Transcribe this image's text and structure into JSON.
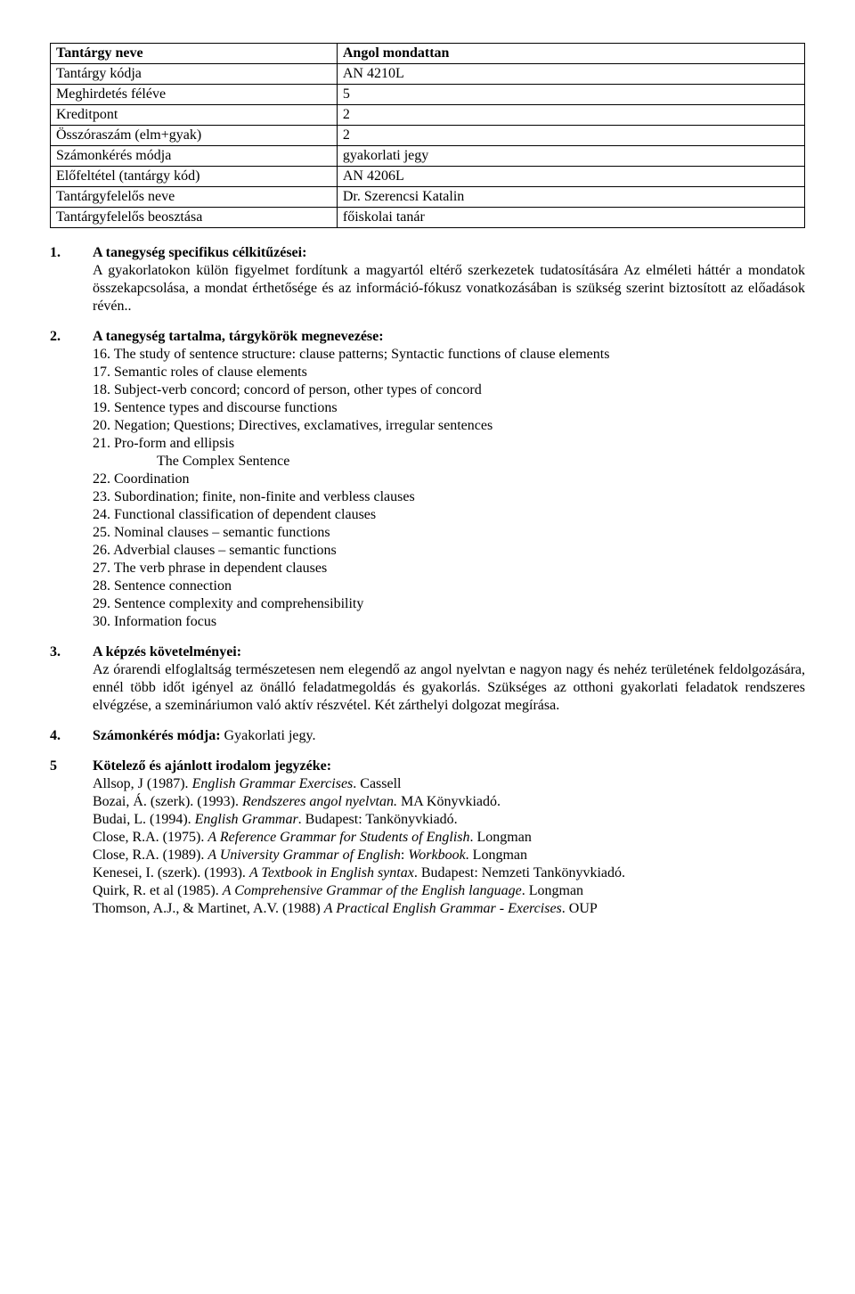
{
  "meta": {
    "rows": [
      {
        "label": "Tantárgy neve",
        "value": "Angol mondattan",
        "label_bold": true,
        "value_bold": true
      },
      {
        "label": "Tantárgy kódja",
        "value": "AN 4210L"
      },
      {
        "label": "Meghirdetés féléve",
        "value": "5"
      },
      {
        "label": "Kreditpont",
        "value": "2"
      },
      {
        "label": "Összóraszám (elm+gyak)",
        "value": "2"
      },
      {
        "label": "Számonkérés módja",
        "value": "gyakorlati jegy"
      },
      {
        "label": "Előfeltétel (tantárgy kód)",
        "value": "AN 4206L"
      },
      {
        "label": "Tantárgyfelelős neve",
        "value": "Dr. Szerencsi Katalin"
      },
      {
        "label": "Tantárgyfelelős beosztása",
        "value": "főiskolai tanár"
      }
    ]
  },
  "section1": {
    "num": "1.",
    "title": "A tanegység specifikus célkitűzései:",
    "body": "A gyakorlatokon külön figyelmet fordítunk a magyartól eltérő szerkezetek tudatosítására Az elméleti háttér a mondatok összekapcsolása, a mondat érthetősége és az információ-fókusz vonatkozásában is szükség szerint biztosított az előadások révén.."
  },
  "section2": {
    "num": "2.",
    "title": "A tanegység tartalma, tárgykörök megnevezése:",
    "items": [
      {
        "n": "16.",
        "text": "The study of sentence structure: clause patterns; Syntactic functions of clause elements"
      },
      {
        "n": "17.",
        "text": "Semantic roles of clause elements"
      },
      {
        "n": "18.",
        "text": "Subject-verb concord; concord of person, other types of concord"
      },
      {
        "n": "19.",
        "text": "Sentence types and discourse functions"
      },
      {
        "n": "20.",
        "text": "Negation; Questions; Directives, exclamatives, irregular sentences"
      },
      {
        "n": "21.",
        "text": "Pro-form and ellipsis"
      }
    ],
    "subheading": "The Complex Sentence",
    "items2": [
      {
        "n": "22.",
        "text": "Coordination"
      },
      {
        "n": "23.",
        "text": "Subordination; finite, non-finite and verbless clauses"
      },
      {
        "n": "24.",
        "text": "Functional classification of dependent clauses"
      },
      {
        "n": "25.",
        "text": "Nominal clauses – semantic functions"
      },
      {
        "n": "26.",
        "text": "Adverbial clauses – semantic functions"
      },
      {
        "n": "27.",
        "text": "The verb phrase in dependent clauses"
      },
      {
        "n": "28.",
        "text": "Sentence connection"
      },
      {
        "n": "29.",
        "text": "Sentence complexity and comprehensibility"
      },
      {
        "n": "30.",
        "text": "Information focus"
      }
    ]
  },
  "section3": {
    "num": "3.",
    "title": "A képzés követelményei:",
    "body": "Az órarendi elfoglaltság természetesen nem elegendő az angol nyelvtan e nagyon nagy és nehéz területének feldolgozására, ennél több időt igényel az önálló feladatmegoldás és gyakorlás. Szükséges az otthoni gyakorlati feladatok rendszeres elvégzése, a szemináriumon való aktív részvétel. Két zárthelyi dolgozat megírása."
  },
  "section4": {
    "num": "4.",
    "title": "Számonkérés módja:",
    "value": "Gyakorlati jegy."
  },
  "section5": {
    "num": "5",
    "title": "Kötelező és ajánlott irodalom jegyzéke:",
    "refs": [
      {
        "pre": "Allsop, J (1987). ",
        "ital": "English Grammar Exercises",
        "post": ". Cassell"
      },
      {
        "pre": "Bozai, Á. (szerk). (1993). ",
        "ital": "Rendszeres angol nyelvtan.",
        "post": " MA Könyvkiadó."
      },
      {
        "pre": "Budai, L. (1994). ",
        "ital": "English Grammar",
        "post": ". Budapest: Tankönyvkiadó."
      },
      {
        "pre": "Close, R.A. (1975). ",
        "ital": "A Reference Grammar for Students of English",
        "post": ". Longman"
      },
      {
        "pre": "Close, R.A. (1989). ",
        "ital": "A University Grammar of English",
        "mid": ": ",
        "ital2": "Workbook",
        "post": ". Longman"
      },
      {
        "pre": "Kenesei, I. (szerk). (1993). ",
        "ital": "A Textbook in English syntax",
        "post": ". Budapest: Nemzeti Tankönyvkiadó.",
        "hang": true
      },
      {
        "pre": "Quirk, R. et al (1985). ",
        "ital": "A Comprehensive Grammar of the English language",
        "post": ". Longman"
      },
      {
        "pre": "Thomson, A.J., & Martinet, A.V. (1988) ",
        "ital": "A Practical English Grammar - Exercises",
        "post": ". OUP"
      }
    ]
  }
}
